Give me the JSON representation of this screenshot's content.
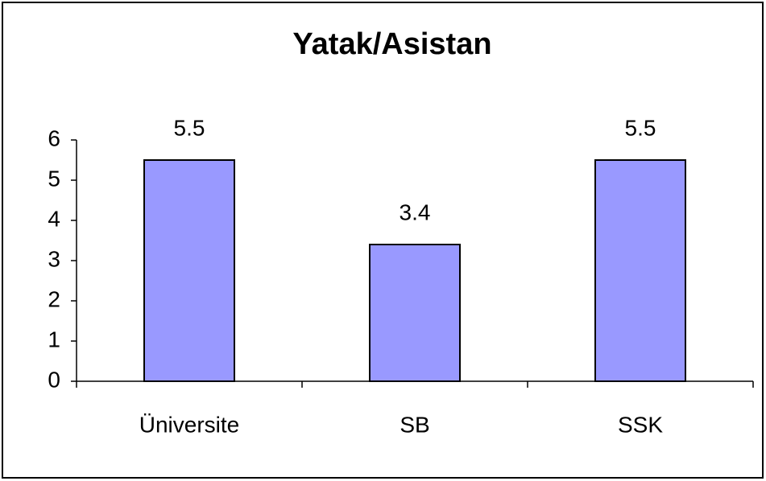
{
  "chart_data": {
    "type": "bar",
    "title": "Yatak/Asistan",
    "categories": [
      "Üniversite",
      "SB",
      "SSK"
    ],
    "values": [
      5.5,
      3.4,
      5.5
    ],
    "color": "#9999ff",
    "ylim": [
      0,
      6
    ],
    "yticks": [
      0,
      1,
      2,
      3,
      4,
      5,
      6
    ],
    "grid": false
  }
}
